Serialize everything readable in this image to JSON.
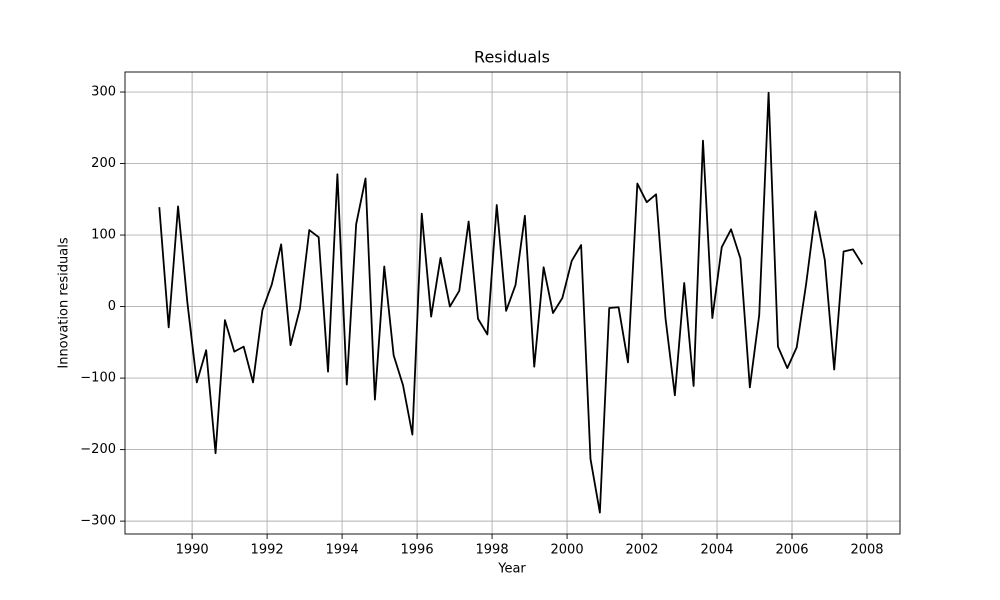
{
  "chart_data": {
    "type": "line",
    "title": "Residuals",
    "x_label": "Year",
    "y_label": "Innovation residuals",
    "x": [
      1989.125,
      1989.375,
      1989.625,
      1989.875,
      1990.125,
      1990.375,
      1990.625,
      1990.875,
      1991.125,
      1991.375,
      1991.625,
      1991.875,
      1992.125,
      1992.375,
      1992.625,
      1992.875,
      1993.125,
      1993.375,
      1993.625,
      1993.875,
      1994.125,
      1994.375,
      1994.625,
      1994.875,
      1995.125,
      1995.375,
      1995.625,
      1995.875,
      1996.125,
      1996.375,
      1996.625,
      1996.875,
      1997.125,
      1997.375,
      1997.625,
      1997.875,
      1998.125,
      1998.375,
      1998.625,
      1998.875,
      1999.125,
      1999.375,
      1999.625,
      1999.875,
      2000.125,
      2000.375,
      2000.625,
      2000.875,
      2001.125,
      2001.375,
      2001.625,
      2001.875,
      2002.125,
      2002.375,
      2002.625,
      2002.875,
      2003.125,
      2003.375,
      2003.625,
      2003.875,
      2004.125,
      2004.375,
      2004.625,
      2004.875,
      2005.125,
      2005.375,
      2005.625,
      2005.875,
      2006.125,
      2006.375,
      2006.625,
      2006.875,
      2007.125,
      2007.375,
      2007.625,
      2007.875
    ],
    "values": [
      139,
      -29,
      140,
      5,
      -106,
      -61,
      -205,
      -19,
      -63,
      -56,
      -106,
      -5,
      31,
      87,
      -54,
      -3,
      107,
      97,
      -91,
      185,
      -109,
      115,
      179,
      -130,
      56,
      -68,
      -110,
      -179,
      130,
      -14,
      68,
      0,
      22,
      119,
      -17,
      -39,
      142,
      -6,
      30,
      127,
      -84,
      55,
      -9,
      12,
      64,
      86,
      -213,
      -288,
      -2,
      -1,
      -78,
      172,
      146,
      157,
      -16,
      -124,
      33,
      -111,
      232,
      -16,
      83,
      108,
      67,
      -113,
      -12,
      299,
      -56,
      -86,
      -57,
      31,
      133,
      65,
      -88,
      77,
      80,
      59
    ],
    "color": "#000000",
    "xlim": [
      1988.21,
      2008.88
    ],
    "ylim": [
      -318,
      328
    ],
    "xticks": [
      1990,
      1992,
      1994,
      1996,
      1998,
      2000,
      2002,
      2004,
      2006,
      2008
    ],
    "yticks": [
      {
        "value": -300,
        "label": "−300"
      },
      {
        "value": -200,
        "label": "−200"
      },
      {
        "value": -100,
        "label": "−100"
      },
      0,
      100,
      200,
      300
    ],
    "grid": true
  }
}
